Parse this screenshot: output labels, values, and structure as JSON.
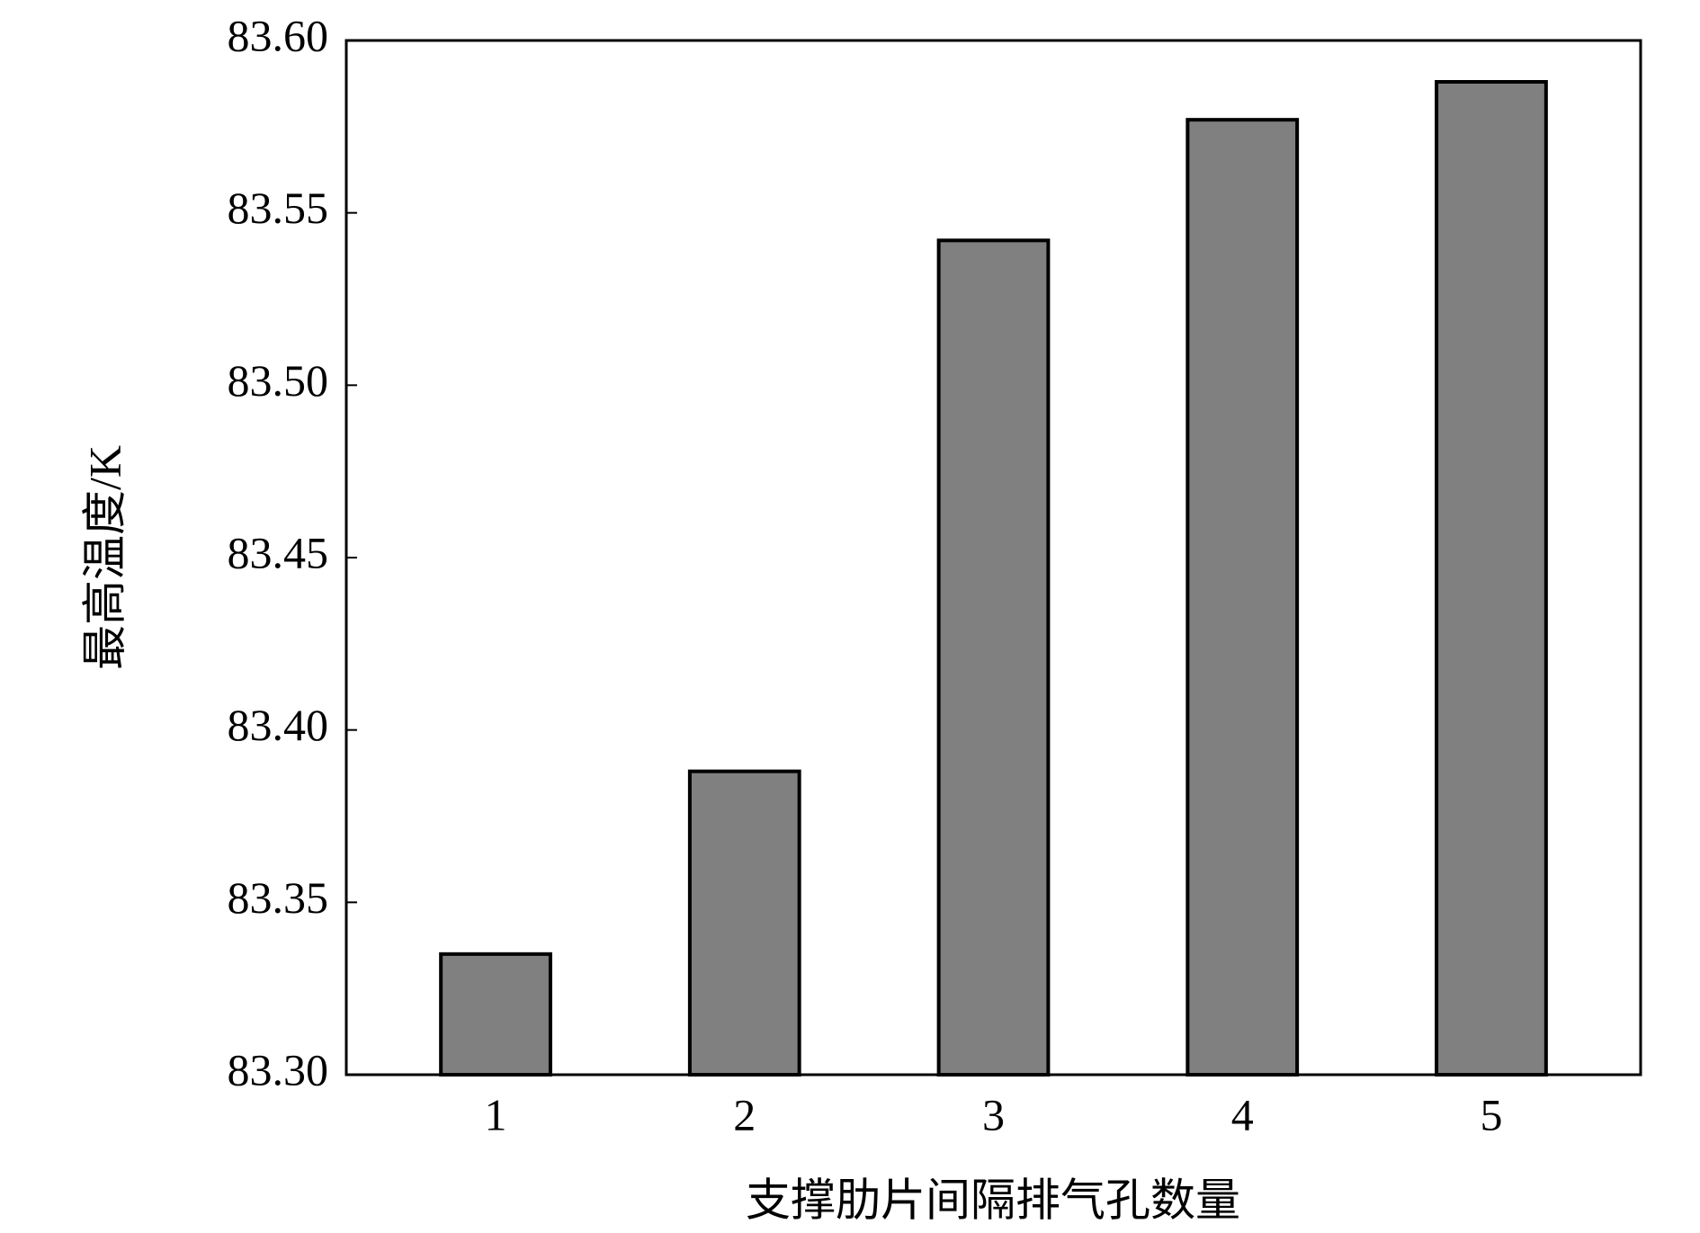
{
  "chart_data": {
    "type": "bar",
    "x_label": "支撑肋片间隔排气孔数量",
    "y_label": "最高温度/K",
    "categories": [
      "1",
      "2",
      "3",
      "4",
      "5"
    ],
    "values": [
      83.335,
      83.388,
      83.542,
      83.577,
      83.588
    ],
    "color": "#808080",
    "ylim": [
      83.3,
      83.6
    ],
    "yticks": [
      {
        "value": 83.3,
        "label": "83.30"
      },
      83.35,
      {
        "value": 83.4,
        "label": "83.40"
      },
      83.45,
      {
        "value": 83.5,
        "label": "83.50"
      },
      83.55,
      {
        "value": 83.6,
        "label": "83.60"
      }
    ],
    "grid": false
  }
}
